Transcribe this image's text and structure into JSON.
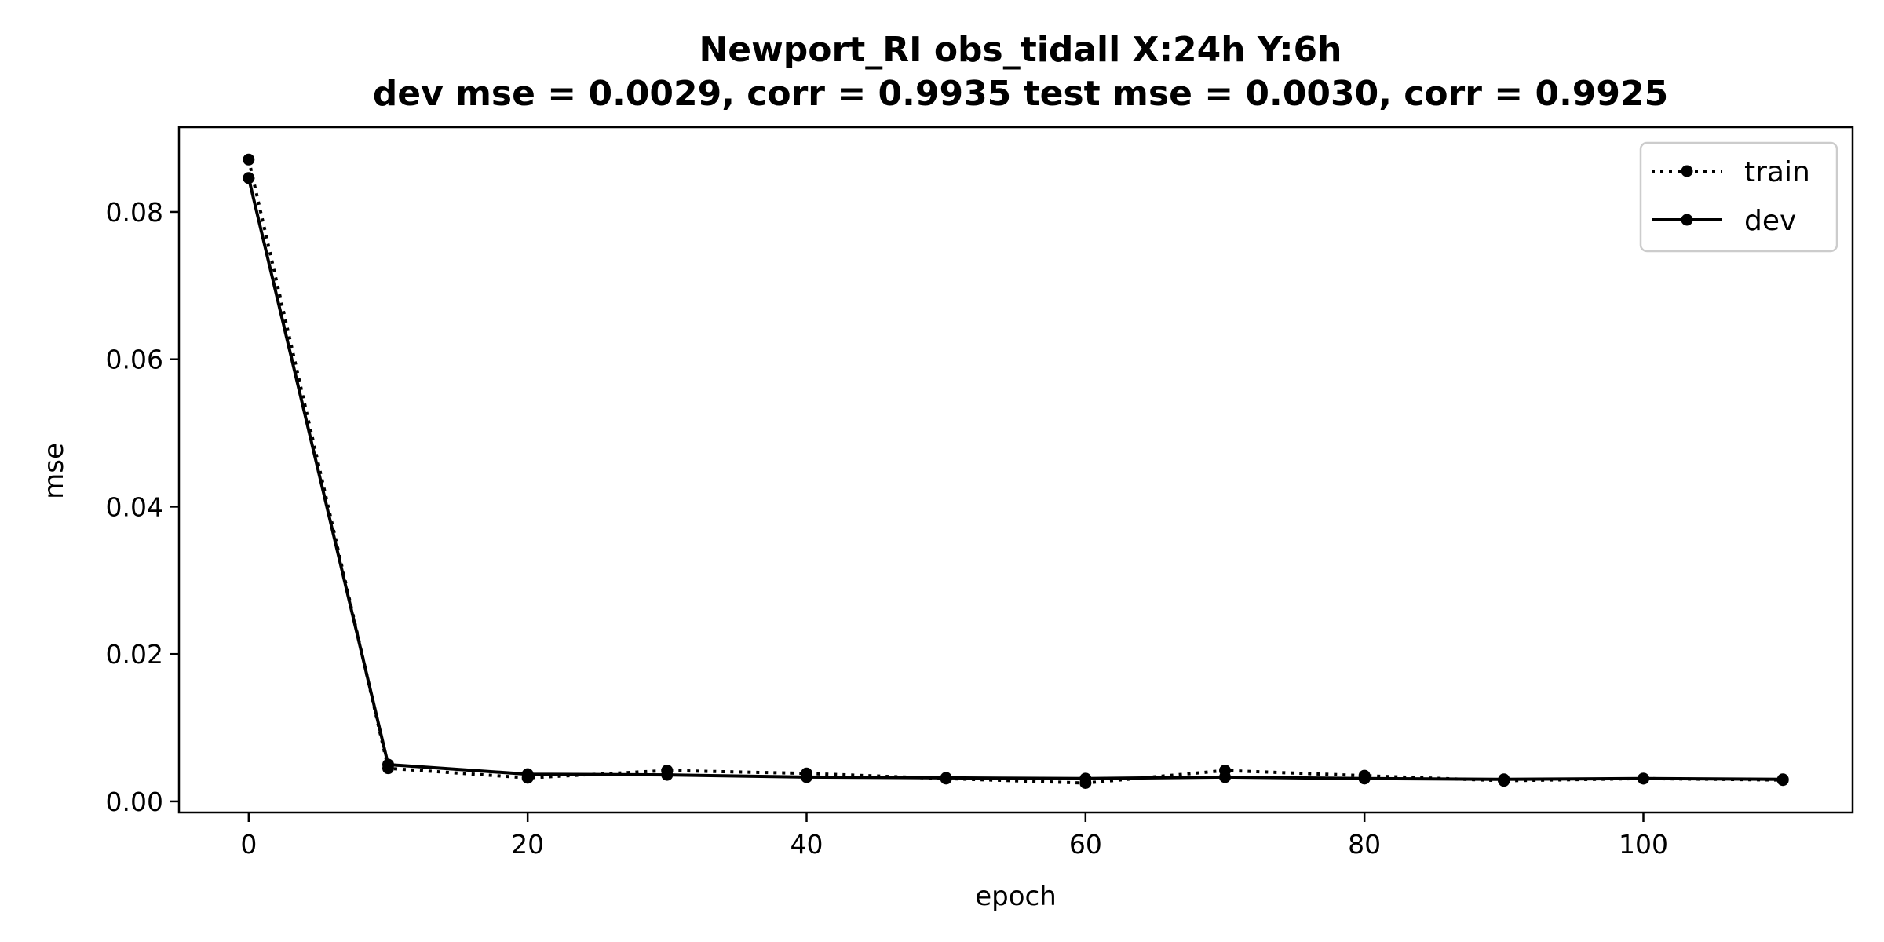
{
  "chart_data": {
    "type": "line",
    "title_line1": "Newport_RI   obs_tidall   X:24h   Y:6h",
    "title_line2": "dev mse = 0.0029, corr = 0.9935   test mse = 0.0030, corr = 0.9925",
    "xlabel": "epoch",
    "ylabel": "mse",
    "xlim": [
      -5,
      115
    ],
    "ylim": [
      -0.0015,
      0.0915
    ],
    "xticks": [
      0,
      20,
      40,
      60,
      80,
      100
    ],
    "xtick_labels": [
      "0",
      "20",
      "40",
      "60",
      "80",
      "100"
    ],
    "yticks": [
      0.0,
      0.02,
      0.04,
      0.06,
      0.08
    ],
    "ytick_labels": [
      "0.00",
      "0.02",
      "0.04",
      "0.06",
      "0.08"
    ],
    "grid": false,
    "legend_position": "top-right",
    "x": [
      0,
      10,
      20,
      30,
      40,
      50,
      60,
      70,
      80,
      90,
      100,
      110
    ],
    "series": [
      {
        "name": "train",
        "style": "dotted",
        "color": "#000000",
        "values": [
          0.0871,
          0.0045,
          0.0032,
          0.0042,
          0.0038,
          0.0031,
          0.0025,
          0.0042,
          0.0035,
          0.0028,
          0.0031,
          0.0029
        ]
      },
      {
        "name": "dev",
        "style": "solid",
        "color": "#000000",
        "values": [
          0.0846,
          0.005,
          0.0037,
          0.0036,
          0.0033,
          0.0032,
          0.0031,
          0.0033,
          0.0031,
          0.003,
          0.0031,
          0.003
        ]
      }
    ]
  }
}
